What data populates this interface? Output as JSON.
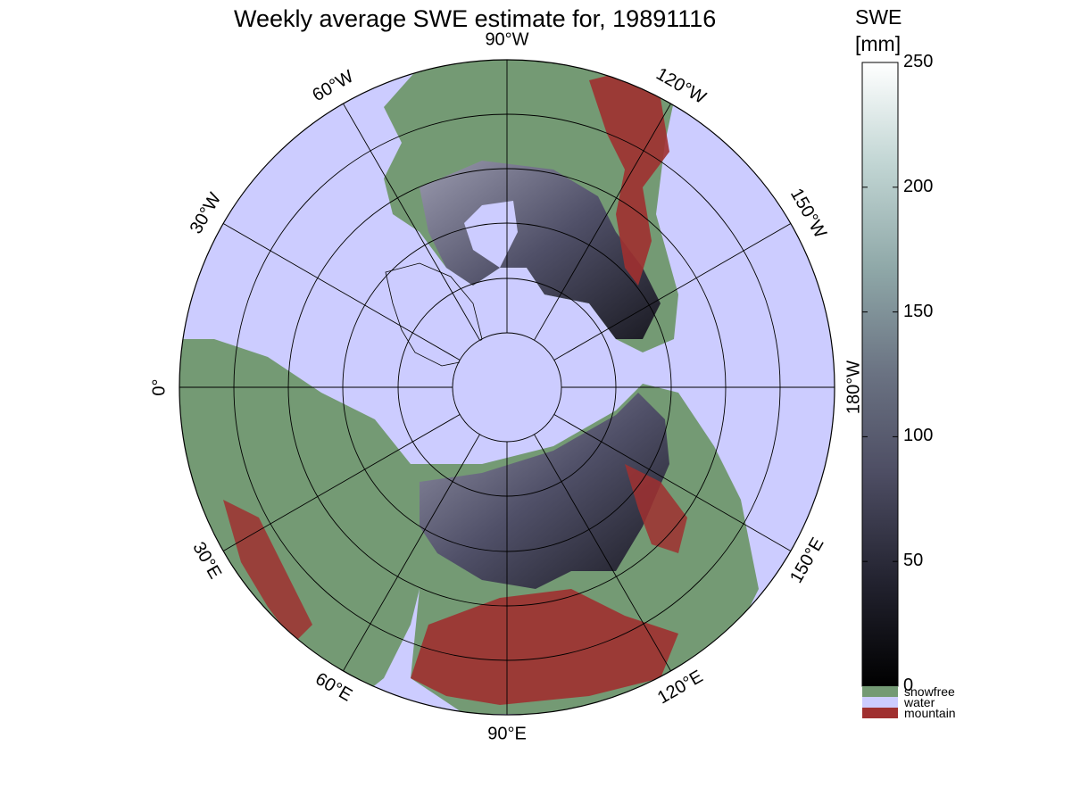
{
  "title": "Weekly average SWE estimate for, 19891116",
  "colorbar": {
    "title_line1": "SWE",
    "title_line2": "[mm]",
    "ticks": [
      "0",
      "50",
      "100",
      "150",
      "200",
      "250"
    ],
    "range": [
      0,
      250
    ],
    "gradient": [
      "#000000",
      "#232330",
      "#4d4d63",
      "#6a7282",
      "#8fa8a8",
      "#c2d6d4",
      "#ffffff"
    ]
  },
  "legend": [
    {
      "label": "snowfree",
      "color": "#749a74"
    },
    {
      "label": "water",
      "color": "#ccccff"
    },
    {
      "label": "mountain",
      "color": "#a03030"
    }
  ],
  "longitude_labels": [
    {
      "text": "90°W",
      "rotation": 0
    },
    {
      "text": "120°W",
      "rotation": 30
    },
    {
      "text": "150°W",
      "rotation": 60
    },
    {
      "text": "180°W",
      "rotation": -90
    },
    {
      "text": "150°E",
      "rotation": -60
    },
    {
      "text": "120°E",
      "rotation": -30
    },
    {
      "text": "90°E",
      "rotation": 0
    },
    {
      "text": "60°E",
      "rotation": 30
    },
    {
      "text": "30°E",
      "rotation": 60
    },
    {
      "text": "0°",
      "rotation": -90
    },
    {
      "text": "30°W",
      "rotation": -60
    },
    {
      "text": "60°W",
      "rotation": -30
    }
  ],
  "map_colors": {
    "water": "#ccccff",
    "snowfree": "#749a74",
    "mountain": "#a03030",
    "snow_low": "#1a1a22",
    "snow_mid": "#505068",
    "snow_high": "#9a9aae"
  }
}
